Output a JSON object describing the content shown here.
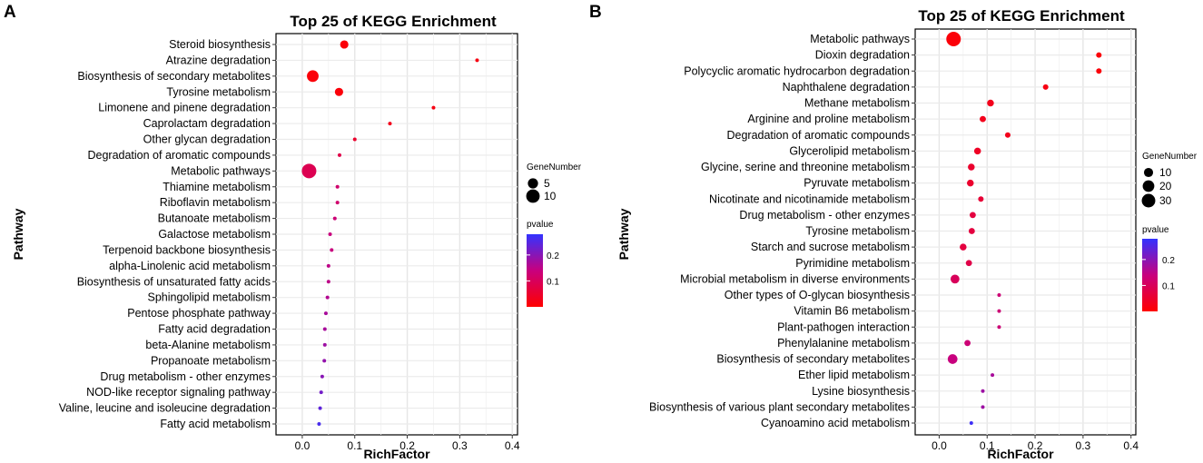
{
  "chart_data": [
    {
      "type": "scatter",
      "panel_letter": "A",
      "title": "Top 25 of KEGG Enrichment",
      "xlabel": "RichFactor",
      "ylabel": "Pathway",
      "xlim": [
        -0.05,
        0.41
      ],
      "xticks": [
        0.0,
        0.1,
        0.2,
        0.3,
        0.4
      ],
      "xtick_labels": [
        "0.0",
        "0.1",
        "0.2",
        "0.3",
        "0.4"
      ],
      "size_legend": {
        "title": "GeneNumber",
        "values": [
          5,
          10
        ],
        "labels": [
          "5",
          "10"
        ],
        "domain": [
          1,
          12
        ]
      },
      "color_legend": {
        "title": "pvalue",
        "min": 0.0,
        "max": 0.28,
        "ticks": [
          0.1,
          0.2
        ],
        "tick_labels": [
          "0.1",
          "0.2"
        ],
        "low_color": "#ff0000",
        "high_color": "#3333ff"
      },
      "categories": [
        "Steroid biosynthesis",
        "Atrazine degradation",
        "Biosynthesis of secondary metabolites",
        "Tyrosine metabolism",
        "Limonene and pinene degradation",
        "Caprolactam degradation",
        "Other glycan degradation",
        "Degradation of aromatic compounds",
        "Metabolic pathways",
        "Thiamine metabolism",
        "Riboflavin metabolism",
        "Butanoate metabolism",
        "Galactose metabolism",
        "Terpenoid backbone biosynthesis",
        "alpha-Linolenic acid metabolism",
        "Biosynthesis of unsaturated fatty acids",
        "Sphingolipid metabolism",
        "Pentose phosphate pathway",
        "Fatty acid degradation",
        "beta-Alanine metabolism",
        "Propanoate metabolism",
        "Drug metabolism - other enzymes",
        "NOD-like receptor signaling pathway",
        "Valine, leucine and isoleucine degradation",
        "Fatty acid metabolism"
      ],
      "richfactor": [
        0.08,
        0.333,
        0.02,
        0.07,
        0.25,
        0.167,
        0.1,
        0.071,
        0.013,
        0.067,
        0.067,
        0.062,
        0.053,
        0.056,
        0.05,
        0.05,
        0.048,
        0.045,
        0.043,
        0.043,
        0.042,
        0.038,
        0.036,
        0.034,
        0.032
      ],
      "gene_number": [
        3,
        1,
        7,
        3,
        1,
        1,
        1,
        1,
        12,
        1,
        1,
        1,
        1,
        1,
        1,
        1,
        1,
        1,
        1,
        1,
        1,
        1,
        1,
        1,
        1
      ],
      "pvalue": [
        0.01,
        0.02,
        0.01,
        0.01,
        0.02,
        0.03,
        0.05,
        0.08,
        0.09,
        0.12,
        0.12,
        0.13,
        0.14,
        0.14,
        0.15,
        0.15,
        0.16,
        0.17,
        0.17,
        0.18,
        0.19,
        0.2,
        0.22,
        0.24,
        0.26
      ]
    },
    {
      "type": "scatter",
      "panel_letter": "B",
      "title": "Top 25 of KEGG Enrichment",
      "xlabel": "RichFactor",
      "ylabel": "Pathway",
      "xlim": [
        -0.05,
        0.41
      ],
      "xticks": [
        0.0,
        0.1,
        0.2,
        0.3,
        0.4
      ],
      "xtick_labels": [
        "0.0",
        "0.1",
        "0.2",
        "0.3",
        "0.4"
      ],
      "size_legend": {
        "title": "GeneNumber",
        "values": [
          10,
          20,
          30
        ],
        "labels": [
          "10",
          "20",
          "30"
        ],
        "domain": [
          1,
          36
        ]
      },
      "color_legend": {
        "title": "pvalue",
        "min": 0.0,
        "max": 0.28,
        "ticks": [
          0.1,
          0.2
        ],
        "tick_labels": [
          "0.1",
          "0.2"
        ],
        "low_color": "#ff0000",
        "high_color": "#3333ff"
      },
      "categories": [
        "Metabolic pathways",
        "Dioxin degradation",
        "Polycyclic aromatic hydrocarbon degradation",
        "Naphthalene degradation",
        "Methane metabolism",
        "Arginine and proline metabolism",
        "Degradation of aromatic compounds",
        "Glycerolipid metabolism",
        "Glycine, serine and threonine metabolism",
        "Pyruvate metabolism",
        "Nicotinate and nicotinamide metabolism",
        "Drug metabolism - other enzymes",
        "Tyrosine metabolism",
        "Starch and sucrose metabolism",
        "Pyrimidine metabolism",
        "Microbial metabolism in diverse environments",
        "Other types of O-glycan biosynthesis",
        "Vitamin B6 metabolism",
        "Plant-pathogen interaction",
        "Phenylalanine metabolism",
        "Biosynthesis of secondary metabolites",
        "Ether lipid metabolism",
        "Lysine biosynthesis",
        "Biosynthesis of various plant secondary metabolites",
        "Cyanoamino acid metabolism"
      ],
      "richfactor": [
        0.03,
        0.333,
        0.333,
        0.222,
        0.107,
        0.091,
        0.143,
        0.08,
        0.067,
        0.065,
        0.087,
        0.07,
        0.068,
        0.05,
        0.062,
        0.033,
        0.125,
        0.125,
        0.125,
        0.059,
        0.028,
        0.111,
        0.091,
        0.091,
        0.067
      ],
      "gene_number": [
        36,
        2,
        2,
        2,
        4,
        3,
        2,
        4,
        4,
        4,
        2,
        3,
        3,
        4,
        3,
        9,
        1,
        1,
        1,
        3,
        12,
        1,
        1,
        1,
        1
      ],
      "pvalue": [
        0.01,
        0.01,
        0.01,
        0.02,
        0.03,
        0.03,
        0.03,
        0.04,
        0.05,
        0.05,
        0.06,
        0.07,
        0.07,
        0.07,
        0.08,
        0.1,
        0.13,
        0.13,
        0.13,
        0.13,
        0.14,
        0.17,
        0.18,
        0.18,
        0.27
      ]
    }
  ]
}
